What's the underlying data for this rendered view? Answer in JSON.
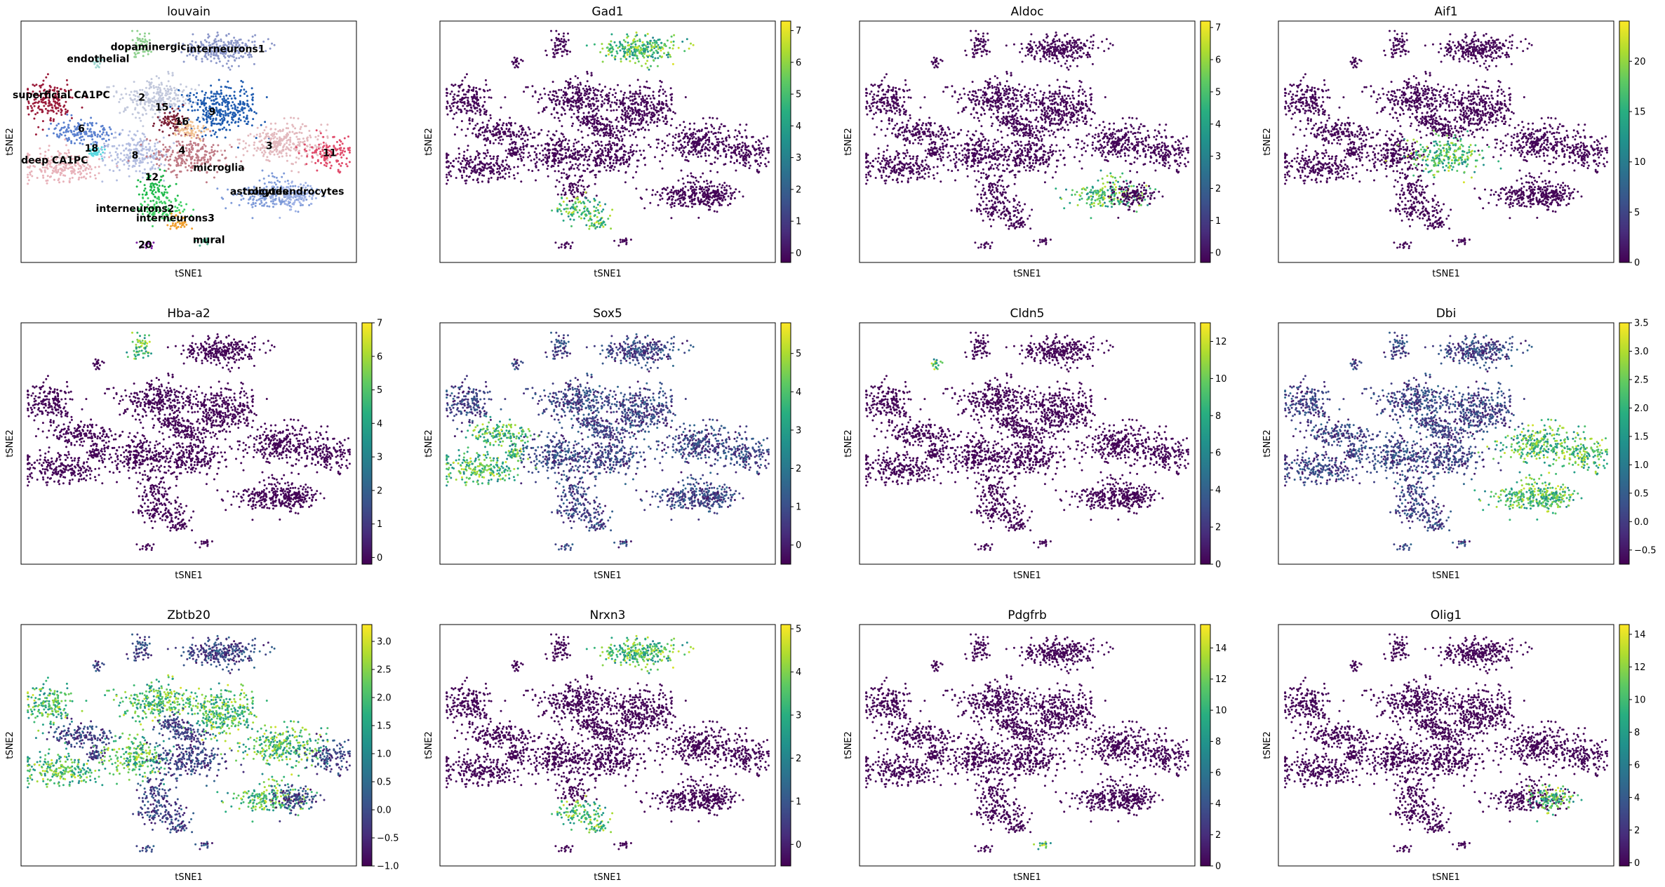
{
  "figure": {
    "common_xlabel": "tSNE1",
    "common_ylabel": "tSNE2"
  },
  "chart_data": [
    {
      "type": "scatter",
      "title": "louvain",
      "xlabel": "tSNE1",
      "ylabel": "tSNE2",
      "colorbar": false,
      "cluster_labels": [
        "dopaminergic",
        "interneurons1",
        "endothelial",
        "superficial CA1PC",
        "2",
        "15",
        "9",
        "16",
        "6",
        "18",
        "8",
        "4",
        "3",
        "11",
        "deep CA1PC",
        "microglia",
        "12",
        "astrocytes",
        "oligodendrocytes",
        "interneurons2",
        "interneurons3",
        "mural",
        "20"
      ]
    },
    {
      "type": "scatter",
      "title": "Gad1",
      "xlabel": "tSNE1",
      "ylabel": "tSNE2",
      "colorbar": true,
      "colormap": "viridis",
      "vmin": -0.3,
      "vmax": 7.3,
      "colorbar_ticks": [
        "0",
        "1",
        "2",
        "3",
        "4",
        "5",
        "6",
        "7"
      ],
      "highlight": "interneurons"
    },
    {
      "type": "scatter",
      "title": "Aldoc",
      "xlabel": "tSNE1",
      "ylabel": "tSNE2",
      "colorbar": true,
      "colormap": "viridis",
      "vmin": -0.3,
      "vmax": 7.2,
      "colorbar_ticks": [
        "0",
        "1",
        "2",
        "3",
        "4",
        "5",
        "6",
        "7"
      ],
      "highlight": "astrocytes"
    },
    {
      "type": "scatter",
      "title": "Aif1",
      "xlabel": "tSNE1",
      "ylabel": "tSNE2",
      "colorbar": true,
      "colormap": "viridis",
      "vmin": 0,
      "vmax": 24,
      "colorbar_ticks": [
        "0",
        "5",
        "10",
        "15",
        "20"
      ],
      "highlight": "microglia"
    },
    {
      "type": "scatter",
      "title": "Hba-a2",
      "xlabel": "tSNE1",
      "ylabel": "tSNE2",
      "colorbar": true,
      "colormap": "viridis",
      "vmin": -0.2,
      "vmax": 7,
      "colorbar_ticks": [
        "0",
        "1",
        "2",
        "3",
        "4",
        "5",
        "6",
        "7"
      ],
      "highlight": "dopaminergic"
    },
    {
      "type": "scatter",
      "title": "Sox5",
      "xlabel": "tSNE1",
      "ylabel": "tSNE2",
      "colorbar": true,
      "colormap": "viridis",
      "vmin": -0.5,
      "vmax": 5.8,
      "colorbar_ticks": [
        "0",
        "1",
        "2",
        "3",
        "4",
        "5"
      ],
      "highlight": "deep"
    },
    {
      "type": "scatter",
      "title": "Cldn5",
      "xlabel": "tSNE1",
      "ylabel": "tSNE2",
      "colorbar": true,
      "colormap": "viridis",
      "vmin": 0,
      "vmax": 13,
      "colorbar_ticks": [
        "0",
        "2",
        "4",
        "6",
        "8",
        "10",
        "12"
      ],
      "highlight": "endothelial"
    },
    {
      "type": "scatter",
      "title": "Dbi",
      "xlabel": "tSNE1",
      "ylabel": "tSNE2",
      "colorbar": true,
      "colormap": "viridis",
      "vmin": -0.75,
      "vmax": 3.5,
      "colorbar_ticks": [
        "−0.5",
        "0.0",
        "0.5",
        "1.0",
        "1.5",
        "2.0",
        "2.5",
        "3.0",
        "3.5"
      ],
      "highlight": "dbi"
    },
    {
      "type": "scatter",
      "title": "Zbtb20",
      "xlabel": "tSNE1",
      "ylabel": "tSNE2",
      "colorbar": true,
      "colormap": "viridis",
      "vmin": -1.0,
      "vmax": 3.3,
      "colorbar_ticks": [
        "−1.0",
        "−0.5",
        "0.0",
        "0.5",
        "1.0",
        "1.5",
        "2.0",
        "2.5",
        "3.0"
      ],
      "highlight": "zbtb20"
    },
    {
      "type": "scatter",
      "title": "Nrxn3",
      "xlabel": "tSNE1",
      "ylabel": "tSNE2",
      "colorbar": true,
      "colormap": "viridis",
      "vmin": -0.5,
      "vmax": 5.1,
      "colorbar_ticks": [
        "0",
        "1",
        "2",
        "3",
        "4",
        "5"
      ],
      "highlight": "interneurons"
    },
    {
      "type": "scatter",
      "title": "Pdgfrb",
      "xlabel": "tSNE1",
      "ylabel": "tSNE2",
      "colorbar": true,
      "colormap": "viridis",
      "vmin": 0,
      "vmax": 15.5,
      "colorbar_ticks": [
        "0",
        "2",
        "4",
        "6",
        "8",
        "10",
        "12",
        "14"
      ],
      "highlight": "mural"
    },
    {
      "type": "scatter",
      "title": "Olig1",
      "xlabel": "tSNE1",
      "ylabel": "tSNE2",
      "colorbar": true,
      "colormap": "viridis",
      "vmin": -0.2,
      "vmax": 14.6,
      "colorbar_ticks": [
        "0",
        "2",
        "4",
        "6",
        "8",
        "10",
        "12",
        "14"
      ],
      "highlight": "oligodendrocytes"
    }
  ]
}
